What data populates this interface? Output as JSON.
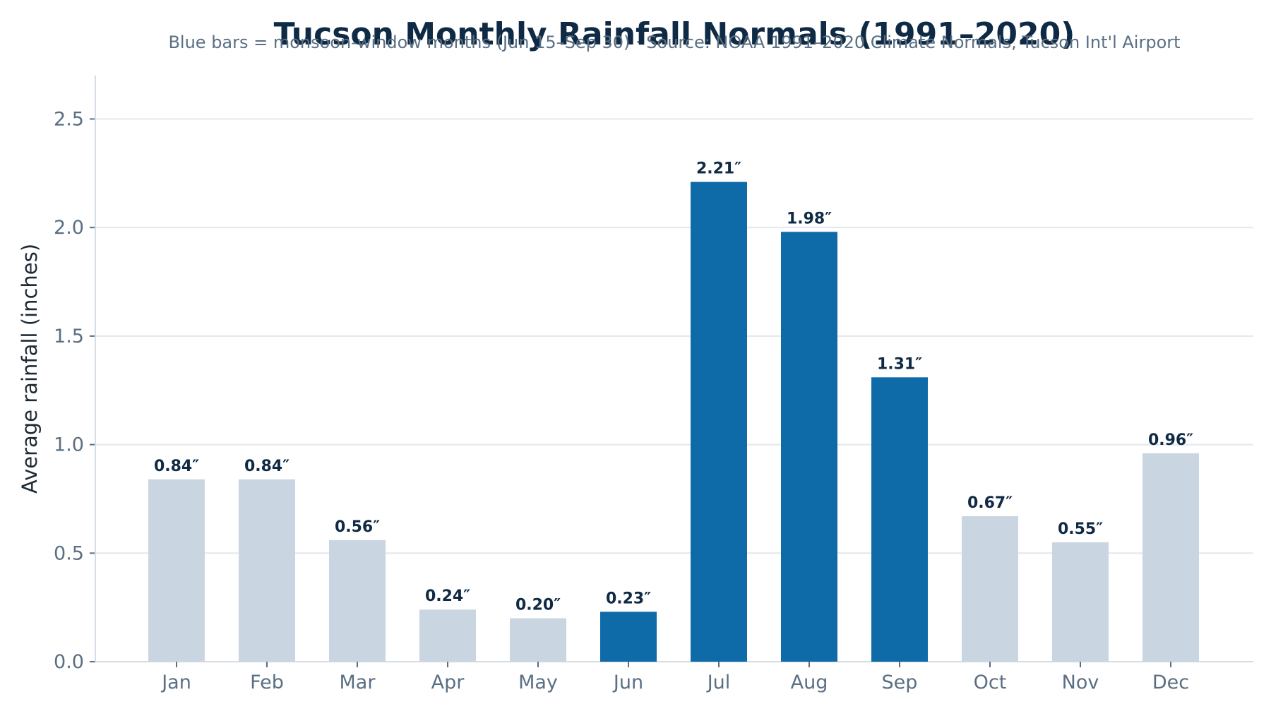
{
  "chart_data": {
    "type": "bar",
    "title": "Tucson Monthly Rainfall Normals (1991–2020)",
    "subtitle": "Blue bars = monsoon-window months (Jun 15–Sep 30)   ·   Source: NOAA 1991–2020 Climate Normals, Tucson Int'l Airport",
    "xlabel": "",
    "ylabel": "Average rainfall (inches)",
    "ylim": [
      0,
      2.7
    ],
    "yticks": [
      0.0,
      0.5,
      1.0,
      1.5,
      2.0,
      2.5
    ],
    "ytick_labels": [
      "0.0",
      "0.5",
      "1.0",
      "1.5",
      "2.0",
      "2.5"
    ],
    "grid": true,
    "categories": [
      "Jan",
      "Feb",
      "Mar",
      "Apr",
      "May",
      "Jun",
      "Jul",
      "Aug",
      "Sep",
      "Oct",
      "Nov",
      "Dec"
    ],
    "values": [
      0.84,
      0.84,
      0.56,
      0.24,
      0.2,
      0.23,
      2.21,
      1.98,
      1.31,
      0.67,
      0.55,
      0.96
    ],
    "data_labels": [
      "0.84″",
      "0.84″",
      "0.56″",
      "0.24″",
      "0.20″",
      "0.23″",
      "2.21″",
      "1.98″",
      "1.31″",
      "0.67″",
      "0.55″",
      "0.96″"
    ],
    "monsoon": [
      false,
      false,
      false,
      false,
      false,
      true,
      true,
      true,
      true,
      false,
      false,
      false
    ],
    "colors": {
      "monsoon": "#0e6ba8",
      "other": "#c9d6e2"
    }
  }
}
